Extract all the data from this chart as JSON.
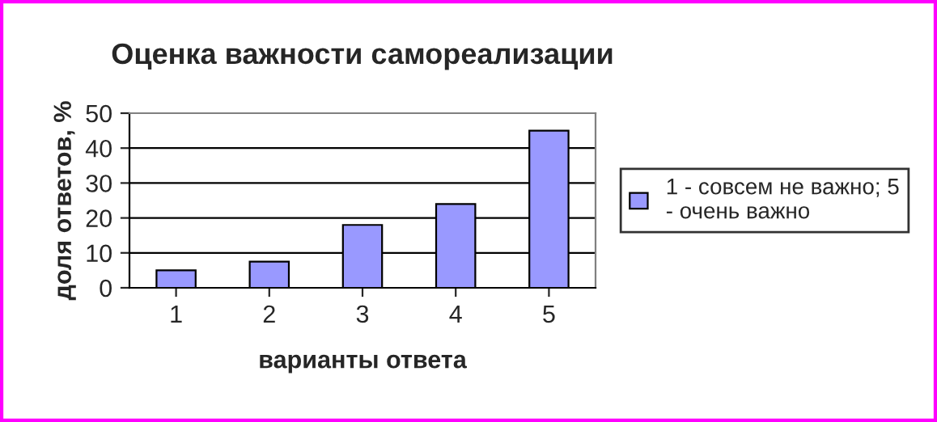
{
  "chart_data": {
    "type": "bar",
    "title": "Оценка важности самореализации",
    "xlabel": "варианты ответа",
    "ylabel": "доля ответов, %",
    "categories": [
      "1",
      "2",
      "3",
      "4",
      "5"
    ],
    "series": [
      {
        "name": "1 - совсем не важно; 5 - очень важно",
        "color": "#9999ff",
        "values": [
          5,
          7.5,
          18,
          24,
          45
        ]
      }
    ],
    "ylim": [
      0,
      50
    ],
    "yticks": [
      0,
      10,
      20,
      30,
      40,
      50
    ],
    "grid": "y",
    "legend": "right"
  }
}
